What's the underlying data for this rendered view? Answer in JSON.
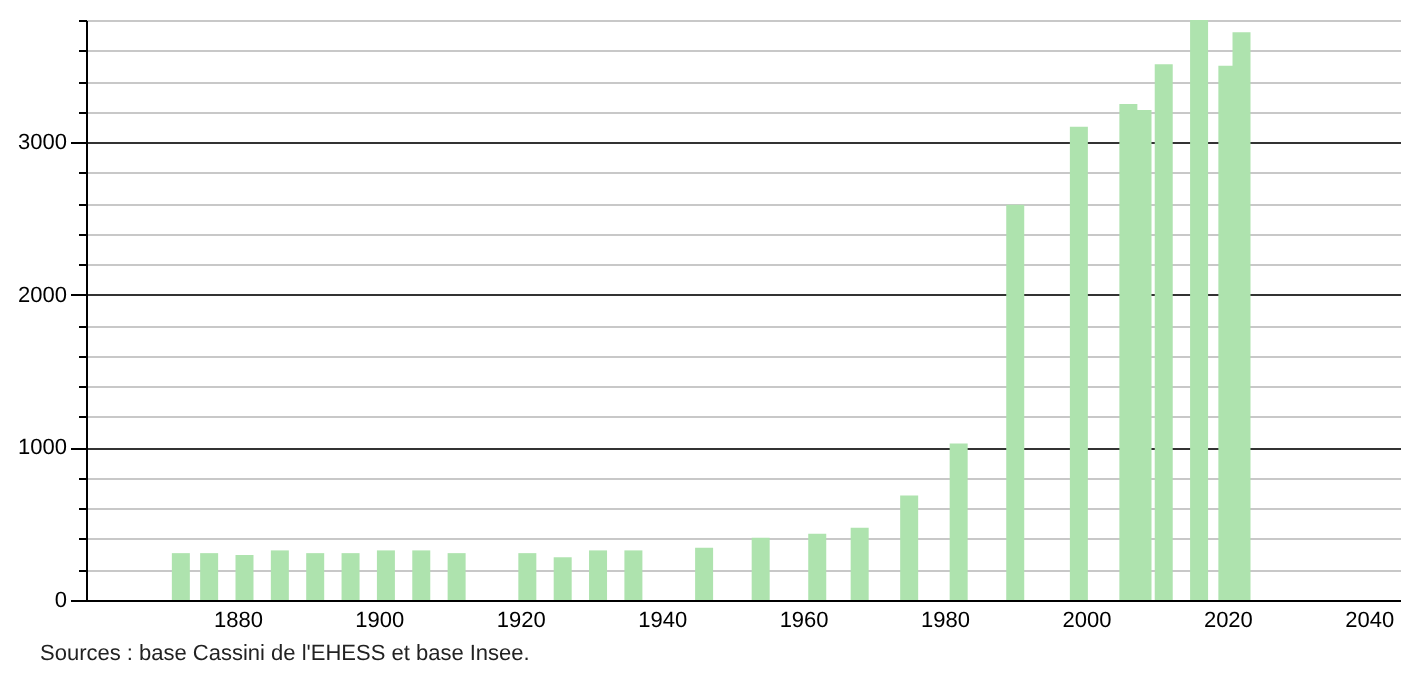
{
  "chart_data": {
    "type": "bar",
    "color": "#aee3ae",
    "x": [
      1872,
      1876,
      1881,
      1886,
      1891,
      1896,
      1901,
      1906,
      1911,
      1921,
      1926,
      1931,
      1936,
      1946,
      1954,
      1962,
      1968,
      1975,
      1982,
      1990,
      1999,
      2006,
      2008,
      2011,
      2016,
      2020,
      2022
    ],
    "values": [
      307,
      307,
      295,
      325,
      307,
      307,
      325,
      325,
      307,
      307,
      280,
      325,
      325,
      342,
      408,
      434,
      474,
      684,
      1026,
      2590,
      3100,
      3250,
      3210,
      3510,
      3800,
      3500,
      3720
    ],
    "xlim": [
      1860,
      2043
    ],
    "xticks": [
      1880,
      1900,
      1920,
      1940,
      1960,
      1980,
      2000,
      2020,
      2040
    ],
    "ylim": [
      0,
      3800
    ],
    "yticks": [
      0,
      {
        "value": 200,
        "label": null
      },
      {
        "value": 400,
        "label": null
      },
      {
        "value": 600,
        "label": null
      },
      {
        "value": 800,
        "label": null
      },
      1000,
      {
        "value": 1200,
        "label": null
      },
      {
        "value": 1400,
        "label": null
      },
      {
        "value": 1600,
        "label": null
      },
      {
        "value": 1800,
        "label": null
      },
      2000,
      {
        "value": 2200,
        "label": null
      },
      {
        "value": 2400,
        "label": null
      },
      {
        "value": 2600,
        "label": null
      },
      {
        "value": 2800,
        "label": null
      },
      3000,
      {
        "value": 3200,
        "label": null
      },
      {
        "value": 3400,
        "label": null
      },
      {
        "value": 3600,
        "label": null
      },
      {
        "value": 3800,
        "label": null
      }
    ],
    "grid": "y",
    "annotations": [
      "Sources : base Cassini de l'EHESS et base Insee."
    ]
  }
}
